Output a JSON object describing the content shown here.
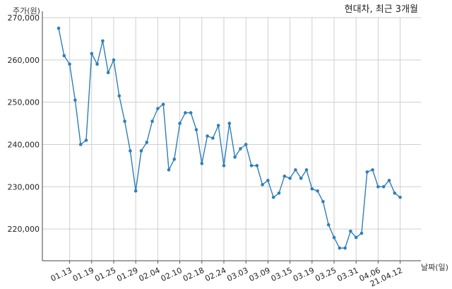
{
  "chart_data": {
    "type": "line",
    "title": "현대차, 최근 3개월",
    "xlabel": "날짜(일)",
    "ylabel": "주가(원)",
    "ylim": [
      212500,
      270000
    ],
    "yticks": [
      {
        "value": 220000,
        "label": "220,000"
      },
      {
        "value": 230000,
        "label": "230,000"
      },
      {
        "value": 240000,
        "label": "240,000"
      },
      {
        "value": 250000,
        "label": "250,000"
      },
      {
        "value": 260000,
        "label": "260,000"
      },
      {
        "value": 270000,
        "label": "270,000"
      }
    ],
    "xticks": [
      {
        "index": 2,
        "label": "01.13"
      },
      {
        "index": 6,
        "label": "01.19"
      },
      {
        "index": 10,
        "label": "01.25"
      },
      {
        "index": 14,
        "label": "01.29"
      },
      {
        "index": 18,
        "label": "02.04"
      },
      {
        "index": 22,
        "label": "02.10"
      },
      {
        "index": 26,
        "label": "02.18"
      },
      {
        "index": 30,
        "label": "02.24"
      },
      {
        "index": 34,
        "label": "03.03"
      },
      {
        "index": 38,
        "label": "03.09"
      },
      {
        "index": 42,
        "label": "03.15"
      },
      {
        "index": 46,
        "label": "03.19"
      },
      {
        "index": 50,
        "label": "03.25"
      },
      {
        "index": 54,
        "label": "03.31"
      },
      {
        "index": 58,
        "label": "04.06"
      },
      {
        "index": 62,
        "label": "21.04.12"
      }
    ],
    "grid": true,
    "line_color": "#2e7fb8",
    "values": [
      267500,
      261000,
      259000,
      250500,
      240000,
      241000,
      261500,
      259000,
      264500,
      257000,
      260000,
      251500,
      245500,
      238500,
      229000,
      238500,
      240500,
      245500,
      248500,
      249500,
      234000,
      236500,
      245000,
      247500,
      247500,
      243500,
      235500,
      242000,
      241500,
      244500,
      235000,
      245000,
      237000,
      239000,
      240000,
      235000,
      235000,
      230500,
      231500,
      227500,
      228500,
      232500,
      232000,
      234000,
      232000,
      234000,
      229500,
      229000,
      226500,
      221000,
      218000,
      215500,
      215500,
      219500,
      218000,
      219000,
      233500,
      234000,
      230000,
      230000,
      231500,
      228500,
      227500
    ]
  }
}
